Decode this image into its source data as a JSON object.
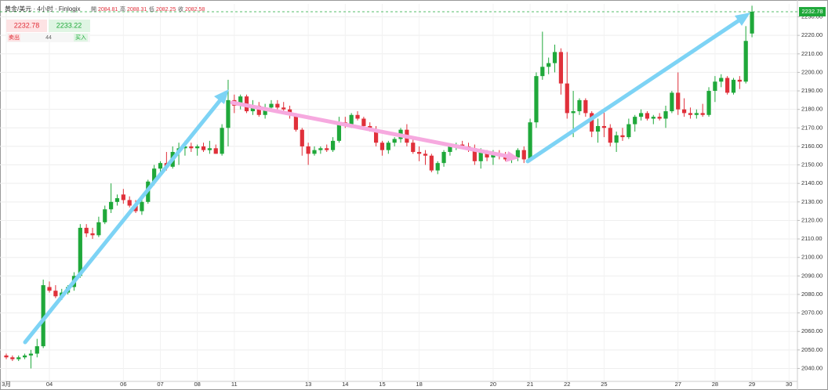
{
  "header": {
    "symbol": "黄金/美元 · 4小时 · Finlogix",
    "ohlc": [
      {
        "label": "開",
        "value": 2084.81
      },
      {
        "label": "高",
        "value": 2088.31
      },
      {
        "label": "低",
        "value": 2082.25
      },
      {
        "label": "收",
        "value": 2082.58
      }
    ]
  },
  "trade": {
    "sell_price": "2232.78",
    "buy_price": "2233.22",
    "sell_label": "卖出",
    "spread": "44",
    "buy_label": "买入"
  },
  "chart_data": {
    "type": "candlestick",
    "up_color": "#1fa83a",
    "down_color": "#e0303a",
    "grid": true,
    "categories": [
      "3月",
      null,
      null,
      null,
      null,
      null,
      null,
      "04",
      null,
      null,
      null,
      null,
      null,
      null,
      null,
      null,
      null,
      null,
      null,
      "06",
      null,
      null,
      null,
      null,
      null,
      "07",
      null,
      null,
      null,
      null,
      null,
      "08",
      null,
      null,
      null,
      null,
      null,
      "11",
      null,
      null,
      null,
      null,
      null,
      null,
      null,
      null,
      null,
      null,
      null,
      "13",
      null,
      null,
      null,
      null,
      null,
      "14",
      null,
      null,
      null,
      null,
      null,
      "15",
      null,
      null,
      null,
      null,
      null,
      "18",
      null,
      null,
      null,
      null,
      null,
      null,
      null,
      null,
      null,
      null,
      null,
      "20",
      null,
      null,
      null,
      null,
      null,
      "21",
      null,
      null,
      null,
      null,
      null,
      "22",
      null,
      null,
      null,
      null,
      null,
      "25",
      null,
      null,
      null,
      null,
      null,
      null,
      null,
      null,
      null,
      null,
      null,
      "27",
      null,
      null,
      null,
      null,
      null,
      "28",
      null,
      null,
      null,
      null,
      null,
      "29",
      null,
      null,
      null,
      null,
      null,
      "30"
    ],
    "open": [
      2047,
      2046,
      2045,
      2046,
      2047,
      2048,
      2052,
      2084,
      2082,
      2079,
      2081,
      2084,
      2090,
      2116,
      2113,
      2112,
      2119,
      2126,
      2130,
      2134,
      2131,
      2128,
      2125,
      2130,
      2141,
      2148,
      2151,
      2149,
      2157,
      2159,
      2160,
      2159,
      2160,
      2158,
      2159,
      2156,
      2170,
      2185,
      2182,
      2187,
      2179,
      2182,
      2177,
      2181,
      2183,
      2181,
      2180,
      2177,
      2169,
      2160,
      2156,
      2158,
      2159,
      2158,
      2163,
      2173,
      2172,
      2177,
      2175,
      2171,
      2169,
      2162,
      2158,
      2162,
      2164,
      2169,
      2162,
      2157,
      2156,
      2155,
      2147,
      2151,
      2157,
      2160,
      2161,
      2160,
      2159,
      2152,
      2157,
      2154,
      2156,
      2155,
      2153,
      2154,
      2158,
      2153,
      2173,
      2198,
      2203,
      2205,
      2211,
      2194,
      2178,
      2179,
      2185,
      2178,
      2168,
      2171,
      2170,
      2162,
      2166,
      2165,
      2172,
      2176,
      2178,
      2175,
      2176,
      2175,
      2179,
      2189,
      2180,
      2178,
      2177,
      2178,
      2177,
      2190,
      2195,
      2197,
      2189,
      2196,
      2195,
      2221,
      null,
      null,
      null,
      null,
      null,
      null
    ],
    "high": [
      2048,
      2047,
      2047,
      2048,
      2050,
      2056,
      2088,
      2087,
      2085,
      2083,
      2085,
      2092,
      2118,
      2118,
      2116,
      2122,
      2128,
      2140,
      2134,
      2137,
      2133,
      2131,
      2132,
      2142,
      2150,
      2152,
      2157,
      2160,
      2162,
      2163,
      2162,
      2161,
      2162,
      2163,
      2161,
      2172,
      2196,
      2188,
      2188,
      2188,
      2185,
      2184,
      2183,
      2185,
      2185,
      2184,
      2182,
      2178,
      2170,
      2162,
      2160,
      2160,
      2161,
      2165,
      2176,
      2176,
      2178,
      2179,
      2176,
      2173,
      2171,
      2163,
      2163,
      2165,
      2170,
      2172,
      2164,
      2160,
      2158,
      2156,
      2152,
      2158,
      2161,
      2162,
      2163,
      2162,
      2161,
      2159,
      2158,
      2158,
      2158,
      2157,
      2156,
      2159,
      2160,
      2175,
      2200,
      2222,
      2208,
      2215,
      2213,
      2211,
      2190,
      2186,
      2186,
      2179,
      2175,
      2180,
      2172,
      2168,
      2170,
      2175,
      2177,
      2180,
      2179,
      2177,
      2178,
      2182,
      2190,
      2200,
      2186,
      2181,
      2180,
      2183,
      2192,
      2198,
      2199,
      2198,
      2197,
      2198,
      2225,
      2236,
      null,
      null,
      null,
      null,
      null,
      null
    ],
    "low": [
      2045,
      2044,
      2044,
      2045,
      2040,
      2046,
      2051,
      2081,
      2078,
      2077,
      2080,
      2082,
      2089,
      2111,
      2110,
      2111,
      2118,
      2124,
      2128,
      2129,
      2127,
      2124,
      2123,
      2129,
      2139,
      2145,
      2147,
      2148,
      2150,
      2155,
      2157,
      2155,
      2157,
      2156,
      2156,
      2155,
      2160,
      2178,
      2180,
      2178,
      2177,
      2176,
      2175,
      2180,
      2180,
      2178,
      2175,
      2168,
      2155,
      2150,
      2155,
      2156,
      2157,
      2157,
      2162,
      2170,
      2170,
      2174,
      2170,
      2168,
      2160,
      2155,
      2156,
      2160,
      2162,
      2160,
      2156,
      2152,
      2150,
      2146,
      2145,
      2149,
      2155,
      2158,
      2159,
      2157,
      2150,
      2148,
      2152,
      2150,
      2153,
      2152,
      2151,
      2152,
      2151,
      2152,
      2170,
      2196,
      2199,
      2200,
      2188,
      2175,
      2165,
      2177,
      2176,
      2165,
      2162,
      2165,
      2160,
      2157,
      2163,
      2164,
      2168,
      2174,
      2174,
      2172,
      2174,
      2170,
      2178,
      2177,
      2176,
      2175,
      2175,
      2176,
      2176,
      2184,
      2192,
      2188,
      2188,
      2191,
      2194,
      2219,
      null,
      null,
      null,
      null,
      null,
      null
    ],
    "close": [
      2046,
      2045,
      2046,
      2047,
      2048,
      2052,
      2085,
      2082,
      2079,
      2081,
      2084,
      2090,
      2116,
      2113,
      2112,
      2119,
      2126,
      2130,
      2132,
      2131,
      2128,
      2125,
      2130,
      2141,
      2148,
      2151,
      2149,
      2157,
      2159,
      2160,
      2159,
      2160,
      2158,
      2159,
      2156,
      2170,
      2185,
      2182,
      2187,
      2179,
      2182,
      2177,
      2181,
      2183,
      2181,
      2180,
      2177,
      2169,
      2160,
      2156,
      2158,
      2159,
      2158,
      2163,
      2173,
      2172,
      2177,
      2175,
      2171,
      2169,
      2162,
      2158,
      2162,
      2164,
      2169,
      2162,
      2157,
      2156,
      2155,
      2147,
      2151,
      2157,
      2160,
      2161,
      2160,
      2159,
      2152,
      2157,
      2154,
      2156,
      2155,
      2153,
      2154,
      2158,
      2153,
      2173,
      2198,
      2203,
      2205,
      2211,
      2194,
      2178,
      2179,
      2185,
      2178,
      2168,
      2171,
      2170,
      2162,
      2166,
      2165,
      2172,
      2176,
      2178,
      2175,
      2176,
      2175,
      2179,
      2189,
      2180,
      2178,
      2177,
      2178,
      2177,
      2190,
      2195,
      2197,
      2189,
      2196,
      2195,
      2217,
      2232.78,
      null,
      null,
      null,
      null,
      null,
      null
    ],
    "ylim": [
      2033,
      2237
    ],
    "yticks": [
      {
        "value": 2040,
        "label": "2040.00"
      },
      {
        "value": 2050,
        "label": "2050.00"
      },
      {
        "value": 2060,
        "label": "2060.00"
      },
      {
        "value": 2070,
        "label": "2070.00"
      },
      {
        "value": 2080,
        "label": "2080.00"
      },
      {
        "value": 2090,
        "label": "2090.00"
      },
      {
        "value": 2100,
        "label": "2100.00"
      },
      {
        "value": 2110,
        "label": "2110.00"
      },
      {
        "value": 2120,
        "label": "2120.00"
      },
      {
        "value": 2130,
        "label": "2130.00"
      },
      {
        "value": 2140,
        "label": "2140.00"
      },
      {
        "value": 2150,
        "label": "2150.00"
      },
      {
        "value": 2160,
        "label": "2160.00"
      },
      {
        "value": 2170,
        "label": "2170.00"
      },
      {
        "value": 2180,
        "label": "2180.00"
      },
      {
        "value": 2190,
        "label": "2190.00"
      },
      {
        "value": 2200,
        "label": "2200.00"
      },
      {
        "value": 2210,
        "label": "2210.00"
      },
      {
        "value": 2220,
        "label": "2220.00"
      },
      {
        "value": 2230,
        "label": "2230.00"
      }
    ]
  }
}
